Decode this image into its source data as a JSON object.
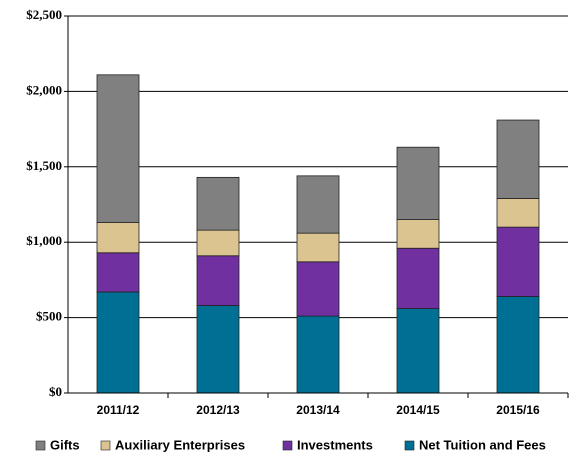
{
  "chart_data": {
    "type": "stacked_bar",
    "categories": [
      "2011/12",
      "2012/13",
      "2013/14",
      "2014/15",
      "2015/16"
    ],
    "series": [
      {
        "name": "Net Tuition and Fees",
        "color": "#006f94",
        "values": [
          670,
          580,
          510,
          560,
          640
        ]
      },
      {
        "name": "Investments",
        "color": "#7030a0",
        "values": [
          260,
          330,
          360,
          400,
          460
        ]
      },
      {
        "name": "Auxiliary Enterprises",
        "color": "#dcc490",
        "values": [
          200,
          170,
          190,
          190,
          190
        ]
      },
      {
        "name": "Gifts",
        "color": "#808080",
        "values": [
          980,
          350,
          380,
          480,
          520
        ]
      }
    ],
    "ylim": [
      0,
      2500
    ],
    "yticks": [
      {
        "value": 0,
        "label": "$0"
      },
      {
        "value": 500,
        "label": "$500"
      },
      {
        "value": 1000,
        "label": "$1,000"
      },
      {
        "value": 1500,
        "label": "$1,500"
      },
      {
        "value": 2000,
        "label": "$2,000"
      },
      {
        "value": 2500,
        "label": "$2,500"
      }
    ],
    "grid": true,
    "legend": "bottom"
  }
}
